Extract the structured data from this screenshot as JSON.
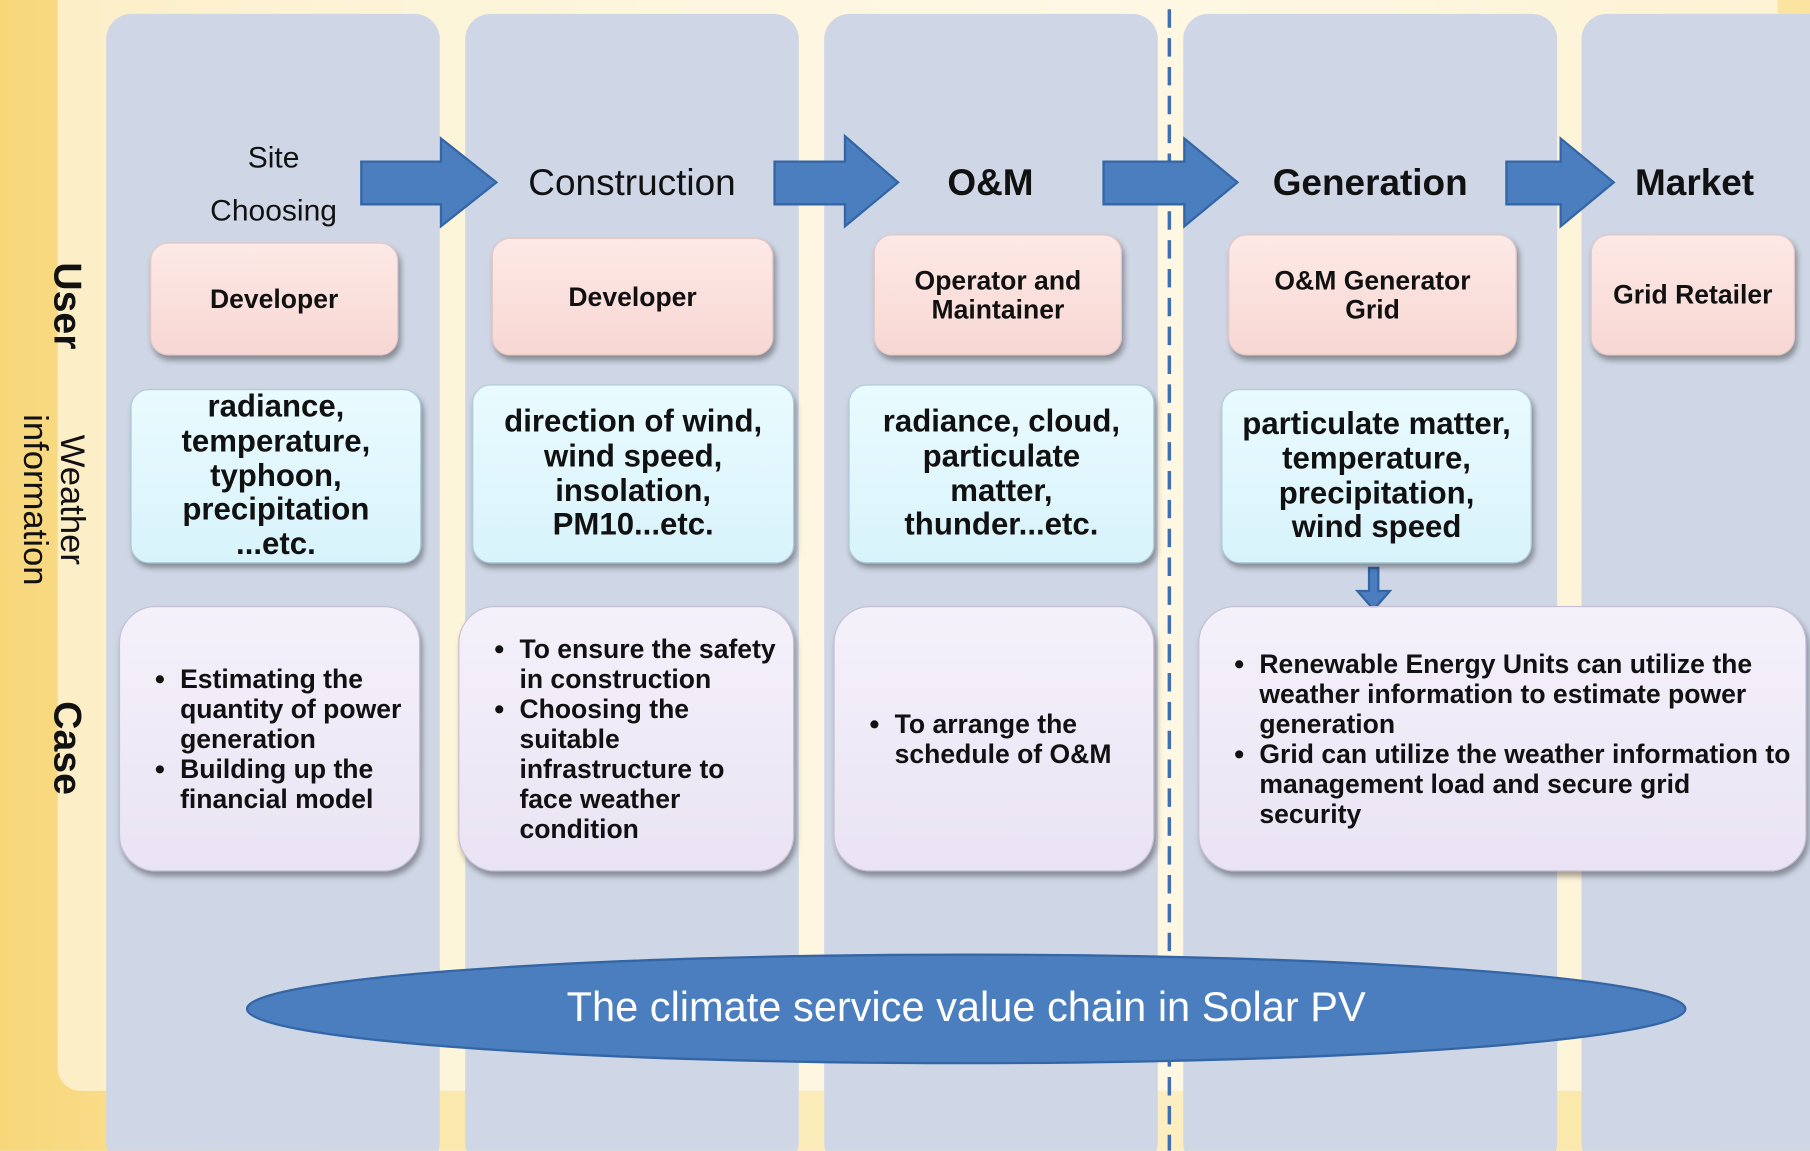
{
  "row_labels": [
    "User",
    "Weather information",
    "Case"
  ],
  "stages": [
    {
      "title": "Site Choosing",
      "user": "Developer",
      "weather": "radiance, temperature, typhoon, precipitation ...etc.",
      "case": [
        "Estimating the quantity of power generation",
        "Building up the financial model"
      ]
    },
    {
      "title": "Construction",
      "user": "Developer",
      "weather": "direction of wind, wind speed, insolation, PM10...etc.",
      "case": [
        "To ensure the safety in construction",
        "Choosing the suitable infrastructure to face weather condition"
      ]
    },
    {
      "title": "O&M",
      "user": "Operator and Maintainer",
      "weather": "radiance, cloud, particulate matter, thunder...etc.",
      "case": [
        "To arrange the schedule of O&M"
      ]
    },
    {
      "title": "Generation",
      "user": "O&M Generator Grid",
      "weather": "particulate matter, temperature, precipitation, wind speed",
      "case": [
        "Renewable Energy Units can utilize the weather information to estimate power generation",
        "Grid can  utilize the weather information to management load and secure grid security"
      ]
    },
    {
      "title": "Market",
      "user": "Grid Retailer"
    }
  ],
  "caption": "The climate service value chain in Solar PV"
}
